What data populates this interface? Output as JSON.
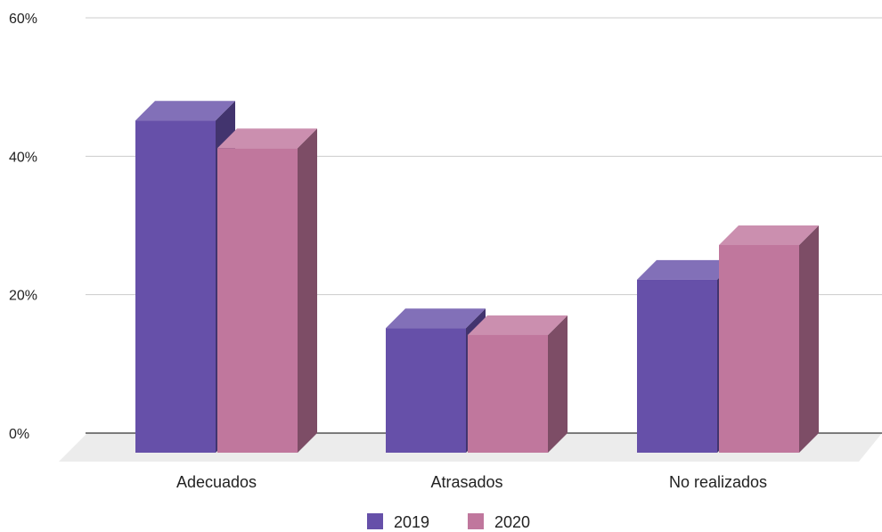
{
  "chart_data": {
    "type": "bar",
    "style": "3d-clustered-column",
    "categories": [
      "Adecuados",
      "Atrasados",
      "No realizados"
    ],
    "series": [
      {
        "name": "2019",
        "values": [
          48,
          18,
          25
        ],
        "color": "#6650a9"
      },
      {
        "name": "2020",
        "values": [
          44,
          17,
          30
        ],
        "color": "#c0779d"
      }
    ],
    "ylim": [
      0,
      60
    ],
    "y_ticks": [
      "0%",
      "20%",
      "40%",
      "60%"
    ],
    "y_tick_values": [
      0,
      20,
      40,
      60
    ],
    "unit": "%",
    "grid": true,
    "legend_position": "bottom",
    "floor_color": "#ececec",
    "title": "",
    "xlabel": "",
    "ylabel": ""
  }
}
